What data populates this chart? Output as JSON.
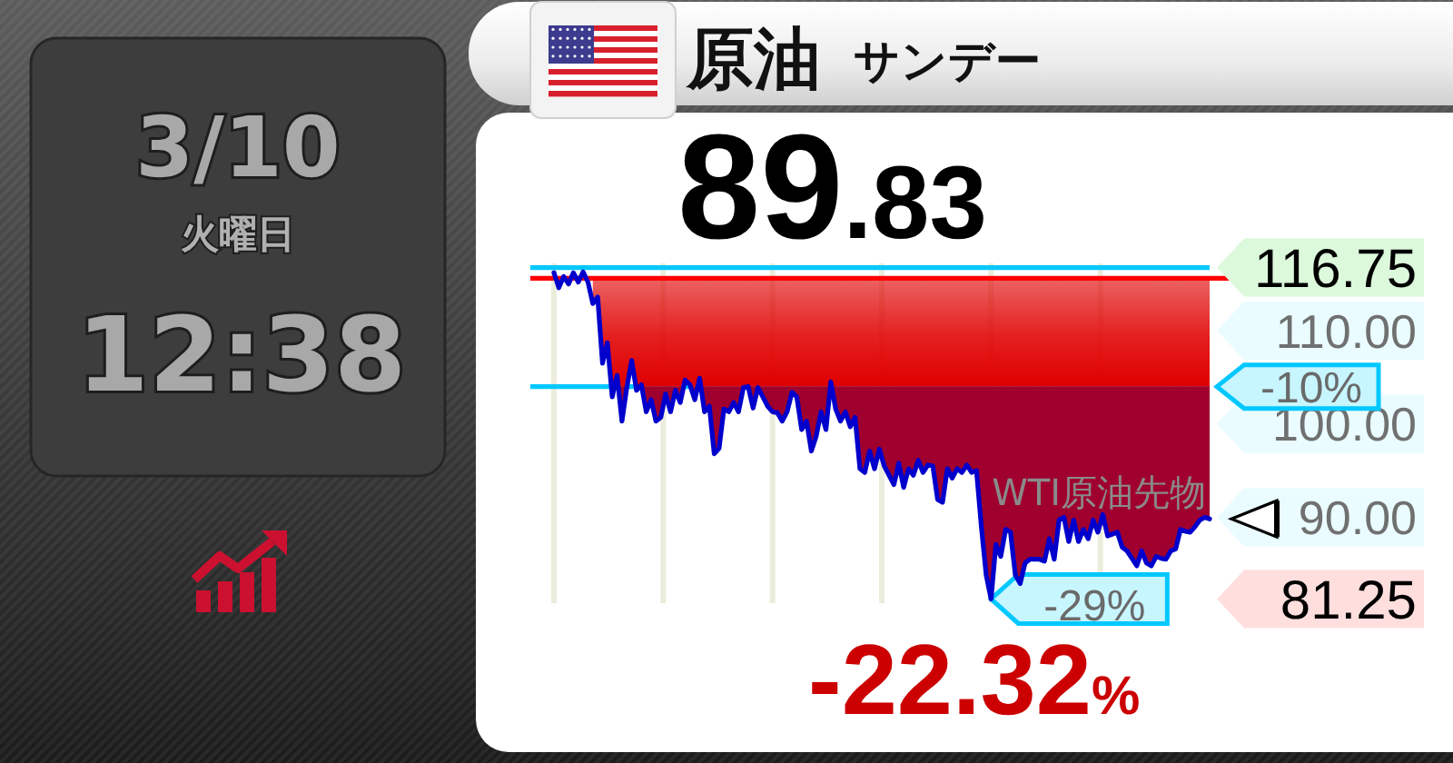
{
  "chart_data": {
    "type": "line",
    "title": "原油",
    "subtitle": "サンデー",
    "categories": [
      null,
      null,
      null,
      null,
      null,
      null,
      null,
      null,
      null,
      null,
      null,
      null,
      null,
      null,
      null,
      null,
      null,
      null,
      null,
      null,
      null,
      null,
      null,
      null,
      null,
      null,
      null,
      null,
      null,
      null,
      null,
      null,
      null,
      null,
      null,
      null,
      null,
      null,
      null,
      null,
      null,
      null,
      null,
      null,
      null,
      null,
      null,
      null,
      null,
      null,
      null,
      null,
      null,
      null,
      null,
      null,
      null,
      null,
      null,
      null,
      null,
      null,
      null,
      null,
      null,
      null,
      null,
      null,
      null,
      null,
      null,
      null,
      null,
      null,
      null,
      null,
      null,
      null,
      null,
      null,
      null,
      null,
      null,
      null,
      null,
      null,
      null,
      null,
      null,
      null,
      null,
      null,
      null,
      null,
      null,
      null,
      null,
      null,
      null,
      null,
      null,
      null,
      null,
      null,
      null,
      null,
      null,
      null,
      null,
      null,
      null,
      null,
      null,
      null,
      null,
      null,
      null,
      null,
      null,
      null,
      null,
      null,
      null,
      null,
      null,
      null,
      null,
      null,
      null,
      null,
      null,
      null,
      null,
      null,
      null,
      null
    ],
    "series": [
      {
        "color": "#0000cc",
        "values": [
          116.2,
          114.6,
          115.8,
          115.0,
          116.2,
          115.2,
          116.3,
          115.2,
          112.9,
          113.6,
          106.5,
          108.7,
          102.9,
          105.2,
          100.3,
          103.9,
          106.8,
          103.6,
          104.2,
          101.3,
          102.6,
          100.3,
          100.7,
          103.2,
          101.3,
          103.6,
          102.3,
          104.7,
          104.2,
          102.6,
          104.9,
          101.3,
          101.9,
          96.8,
          97.4,
          101.6,
          101.3,
          102.3,
          101.3,
          103.9,
          104.0,
          101.7,
          103.9,
          102.9,
          101.9,
          101.3,
          101.2,
          100.3,
          101.3,
          103.4,
          102.9,
          99.4,
          100.3,
          97.1,
          98.7,
          101.3,
          99.4,
          104.5,
          101.6,
          100.3,
          101.3,
          99.7,
          100.7,
          95.2,
          94.8,
          97.1,
          95.2,
          97.3,
          95.5,
          94.5,
          93.5,
          95.8,
          93.2,
          95.2,
          94.5,
          96.1,
          94.8,
          95.6,
          95.5,
          91.9,
          91.6,
          95.2,
          94.2,
          95.2,
          94.8,
          95.6,
          94.8,
          95.0,
          89.0,
          83.8,
          81.25,
          87.1,
          85.8,
          88.7,
          88.4,
          83.8,
          82.9,
          85.1,
          85.5,
          85.5,
          85.5,
          85.3,
          87.7,
          85.5,
          89.7,
          90.0,
          87.4,
          89.7,
          87.4,
          88.7,
          87.7,
          89.7,
          88.4,
          90.3,
          88.0,
          88.2,
          88.4,
          86.8,
          86.4,
          85.6,
          84.8,
          86.4,
          85.1,
          84.8,
          85.8,
          85.6,
          85.5,
          86.4,
          86.6,
          88.7,
          88.5,
          88.4,
          89.0,
          89.7,
          90.0,
          89.83
        ],
        "lower": [
          null,
          null,
          null,
          null,
          null,
          null,
          null,
          null,
          112.9,
          113.6,
          106.5,
          108.7,
          102.9,
          105.2,
          100.3,
          103.9,
          106.8,
          103.6,
          104.2,
          101.3,
          102.6,
          100.3,
          100.7,
          103.2,
          101.3,
          103.6,
          102.3,
          104.7,
          104.2,
          102.6,
          104.9,
          101.3,
          101.9,
          96.8,
          97.4,
          101.6,
          101.3,
          102.3,
          101.3,
          103.9,
          104.0,
          101.7,
          103.9,
          102.9,
          101.9,
          101.3,
          101.2,
          100.3,
          101.3,
          103.4,
          102.9,
          99.4,
          100.3,
          97.1,
          98.7,
          101.3,
          99.4,
          104.5,
          101.6,
          100.3,
          101.3,
          99.7,
          100.7,
          95.2,
          94.8,
          97.1,
          95.2,
          97.3,
          95.5,
          94.5,
          93.5,
          95.8,
          93.2,
          95.2,
          94.5,
          96.1,
          94.8,
          95.6,
          95.5,
          91.9,
          91.6,
          95.2,
          94.2,
          95.2,
          94.8,
          95.6,
          94.8,
          95.0,
          89.0,
          83.8,
          81.25,
          87.1,
          85.8,
          88.7,
          88.4,
          83.8,
          82.9,
          85.1,
          85.5,
          85.5,
          85.5,
          85.3,
          87.7,
          85.5,
          89.7,
          90.0,
          87.4,
          89.7,
          87.4,
          88.7,
          87.7,
          89.7,
          88.4,
          90.3,
          88.0,
          88.2,
          88.4,
          86.8,
          86.4,
          85.6,
          84.8,
          86.4,
          85.1,
          84.8,
          85.8,
          85.6,
          85.5,
          86.4,
          86.6,
          88.7,
          88.5,
          88.4,
          89.0,
          89.7,
          90.0,
          89.83
        ],
        "upper": [
          null,
          null,
          null,
          null,
          null,
          null,
          null,
          null,
          115.6,
          115.6,
          115.6,
          115.6,
          115.6,
          115.6,
          115.6,
          115.6,
          115.6,
          115.6,
          115.6,
          115.6,
          115.6,
          115.6,
          115.6,
          115.6,
          115.6,
          115.6,
          115.6,
          115.6,
          115.6,
          115.6,
          115.6,
          115.6,
          115.6,
          115.6,
          115.6,
          115.6,
          115.6,
          115.6,
          115.6,
          115.6,
          115.6,
          115.6,
          115.6,
          115.6,
          115.6,
          115.6,
          115.6,
          115.6,
          115.6,
          115.6,
          115.6,
          115.6,
          115.6,
          115.6,
          115.6,
          115.6,
          115.6,
          115.6,
          115.6,
          115.6,
          115.6,
          115.6,
          115.6,
          115.6,
          115.6,
          115.6,
          115.6,
          115.6,
          115.6,
          115.6,
          115.6,
          115.6,
          115.6,
          115.6,
          115.6,
          115.6,
          115.6,
          115.6,
          115.6,
          115.6,
          115.6,
          115.6,
          115.6,
          115.6,
          115.6,
          115.6,
          115.6,
          115.6,
          115.6,
          115.6,
          115.6,
          115.6,
          115.6,
          115.6,
          115.6,
          115.6,
          115.6,
          115.6,
          115.6,
          115.6,
          115.6,
          115.6,
          115.6,
          115.6,
          115.6,
          115.6,
          115.6,
          115.6,
          115.6,
          115.6,
          115.6,
          115.6,
          115.6,
          115.6,
          115.6,
          115.6,
          115.6,
          115.6,
          115.6,
          115.6,
          115.6,
          115.6,
          115.6,
          115.6,
          115.6,
          115.6,
          115.6,
          115.6,
          115.6,
          115.6,
          115.6,
          115.6,
          115.6,
          115.6,
          115.6,
          115.6
        ]
      }
    ],
    "ylim": [
      80.8,
      117.2
    ],
    "yticks": [
      {
        "value": 81.25,
        "label": "81.25"
      },
      {
        "value": 90,
        "label": "90.00"
      },
      {
        "value": 100,
        "label": "100.00"
      },
      {
        "value": 110,
        "label": "110.00"
      },
      {
        "value": 116.75,
        "label": "116.75"
      }
    ],
    "tick_labels": "y",
    "grid": "x",
    "ref_lines": [
      {
        "axis": "y",
        "value": 115.6,
        "color": "#ff0000"
      },
      {
        "axis": "y",
        "value": 116.75,
        "color": "#00c8ff"
      },
      {
        "axis": "y",
        "value": 104.0,
        "color": "#00c8ff"
      }
    ],
    "bands": [
      {
        "axis": "y",
        "from": 104.0,
        "to": 115.6,
        "color": "#e00000"
      },
      {
        "axis": "y",
        "from": 80.8,
        "to": 104.0,
        "color": "#a0002e"
      }
    ],
    "annotations": [
      "89.83",
      "-22.32%",
      "WTI原油先物",
      "3/10",
      "火曜日",
      "12:38",
      "-10%",
      "-29%"
    ]
  }
}
